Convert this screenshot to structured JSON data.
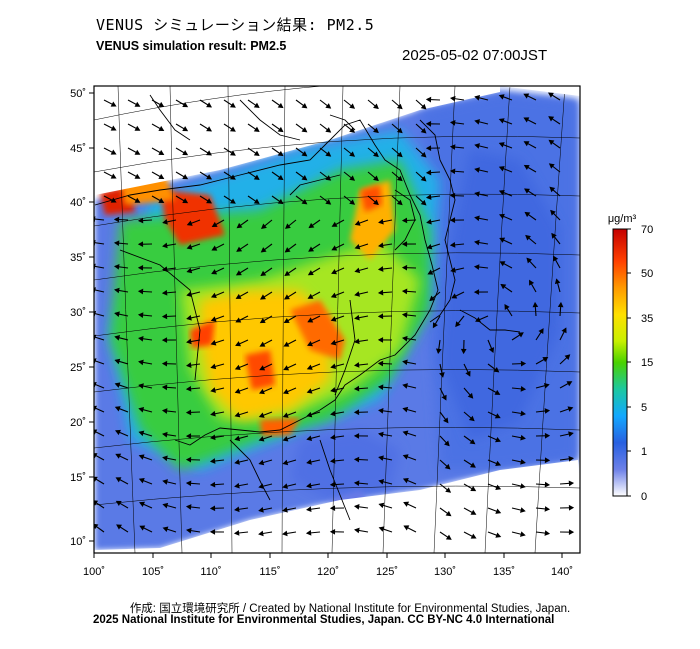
{
  "title_jp": "VENUS シミュレーション結果: PM2.5",
  "title_en": "VENUS simulation result: PM2.5",
  "timestamp": "2025-05-02 07:00JST",
  "map": {
    "lon_range": [
      100,
      141
    ],
    "lat_range": [
      9,
      51
    ],
    "lon_ticks": [
      "100˚",
      "105˚",
      "110˚",
      "115˚",
      "120˚",
      "125˚",
      "130˚",
      "135˚",
      "140˚"
    ],
    "lat_ticks": [
      "50˚",
      "45˚",
      "40˚",
      "35˚",
      "30˚",
      "25˚",
      "20˚",
      "15˚",
      "10˚"
    ]
  },
  "colorbar": {
    "unit": "μg/m³",
    "labels": [
      "70",
      "50",
      "35",
      "15",
      "5",
      "1",
      "0"
    ],
    "colors": [
      "#c40000",
      "#ff3a00",
      "#ff9a00",
      "#ffe000",
      "#c8f000",
      "#4ad200",
      "#1cc8a0",
      "#12a8ff",
      "#2860e0",
      "#4c6ce0",
      "#b0b8f0",
      "#ffffff"
    ]
  },
  "credit_line_1": "作成: 国立環境研究所 / Created by National Institute for Environmental Studies, Japan.",
  "credit_line_2": "2025 National Institute for Environmental Studies, Japan. CC BY-NC 4.0 International"
}
